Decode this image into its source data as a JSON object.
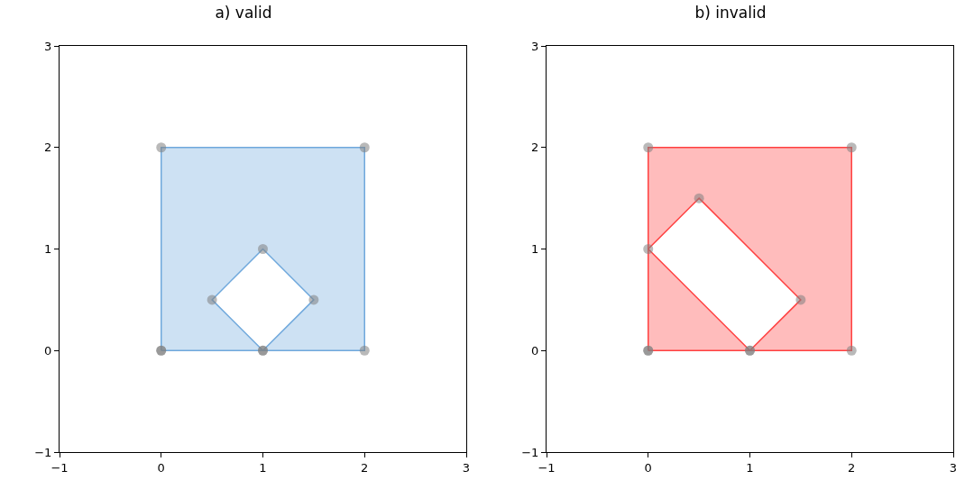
{
  "chart_data": [
    {
      "type": "area",
      "title": "a) valid",
      "xlim": [
        -1,
        3
      ],
      "ylim": [
        -1,
        3
      ],
      "xticks": [
        {
          "value": -1,
          "label": "−1"
        },
        0,
        1,
        2,
        3
      ],
      "yticks": [
        {
          "value": -1,
          "label": "−1"
        },
        0,
        1,
        2,
        3
      ],
      "grid": false,
      "series": [
        {
          "color": "#6fa8dc",
          "x": [
            0,
            2,
            2,
            0,
            0,
            null,
            1,
            0.5,
            1,
            1.5,
            1
          ],
          "values": [
            0,
            0,
            2,
            2,
            0,
            null,
            0,
            0.5,
            1,
            0.5,
            0
          ]
        },
        {
          "type": "scatter",
          "color": "#808080",
          "x": [
            0,
            2,
            2,
            0,
            0,
            1,
            0.5,
            1,
            1.5,
            1
          ],
          "values": [
            0,
            0,
            2,
            2,
            0,
            0,
            0.5,
            1,
            0.5,
            0
          ]
        }
      ]
    },
    {
      "type": "area",
      "title": "b) invalid",
      "xlim": [
        -1,
        3
      ],
      "ylim": [
        -1,
        3
      ],
      "xticks": [
        {
          "value": -1,
          "label": "−1"
        },
        0,
        1,
        2,
        3
      ],
      "yticks": [
        {
          "value": -1,
          "label": "−1"
        },
        0,
        1,
        2,
        3
      ],
      "grid": false,
      "series": [
        {
          "color": "#ff4040",
          "x": [
            0,
            2,
            2,
            0,
            0,
            null,
            1,
            0,
            0.5,
            1.5,
            1
          ],
          "values": [
            0,
            0,
            2,
            2,
            0,
            null,
            0,
            1,
            1.5,
            0.5,
            0
          ]
        },
        {
          "type": "scatter",
          "color": "#808080",
          "x": [
            0,
            2,
            2,
            0,
            0,
            1,
            0,
            0.5,
            1.5,
            1
          ],
          "values": [
            0,
            0,
            2,
            2,
            0,
            0,
            1,
            1.5,
            0.5,
            0
          ]
        }
      ]
    }
  ]
}
